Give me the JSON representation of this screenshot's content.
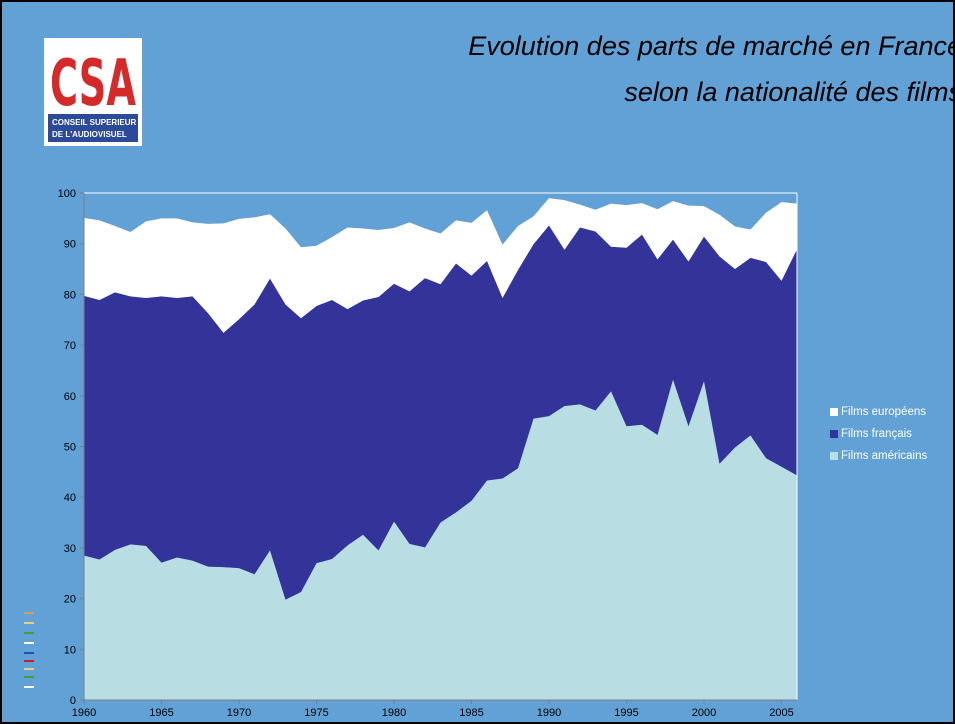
{
  "logo": {
    "mark": "CSA",
    "line1": "CONSEIL SUPERIEUR",
    "line2": "DE L'AUDIOVISUEL"
  },
  "chart_data": {
    "type": "stacked_area",
    "title": "Evolution des parts de marché en France",
    "subtitle": "selon la nationalité des films",
    "x": [
      1960,
      1961,
      1962,
      1963,
      1964,
      1965,
      1966,
      1967,
      1968,
      1969,
      1970,
      1971,
      1972,
      1973,
      1974,
      1975,
      1976,
      1977,
      1978,
      1979,
      1980,
      1981,
      1982,
      1983,
      1984,
      1985,
      1986,
      1987,
      1988,
      1989,
      1990,
      1991,
      1992,
      1993,
      1994,
      1995,
      1996,
      1997,
      1998,
      1999,
      2000,
      2001,
      2002,
      2003,
      2004,
      2005,
      2006
    ],
    "xlim": [
      1960,
      2006
    ],
    "xticks": [
      1960,
      1965,
      1970,
      1975,
      1980,
      1985,
      1990,
      1995,
      2000,
      2005
    ],
    "ylim": [
      0,
      100
    ],
    "yticks": [
      0,
      10,
      20,
      30,
      40,
      50,
      60,
      70,
      80,
      90,
      100
    ],
    "legend": "right",
    "series": [
      {
        "name": "Films américains",
        "color": "#b8dee4",
        "values": [
          28.5,
          27.7,
          29.6,
          30.7,
          30.4,
          27.1,
          28.1,
          27.5,
          26.3,
          26.2,
          26.0,
          24.8,
          29.5,
          19.8,
          21.3,
          27.0,
          27.8,
          30.5,
          32.6,
          29.5,
          35.2,
          30.8,
          30.1,
          35.0,
          37.0,
          39.3,
          43.3,
          43.7,
          45.7,
          55.5,
          56.0,
          58.0,
          58.3,
          57.1,
          60.9,
          54.0,
          54.3,
          52.3,
          63.2,
          54.0,
          62.9,
          46.6,
          49.8,
          52.2,
          47.7,
          46.0,
          44.3
        ]
      },
      {
        "name": "Films français",
        "color": "#333399",
        "values": [
          51.2,
          51.2,
          50.8,
          48.9,
          48.9,
          52.5,
          51.2,
          52.1,
          50.0,
          46.2,
          49.1,
          53.2,
          53.6,
          58.2,
          54.0,
          50.7,
          51.1,
          46.6,
          46.2,
          50.0,
          46.9,
          49.8,
          53.1,
          47.0,
          49.1,
          44.4,
          43.3,
          35.6,
          39.1,
          34.4,
          37.6,
          30.8,
          34.9,
          35.3,
          28.5,
          35.2,
          37.5,
          34.6,
          27.6,
          32.5,
          28.5,
          40.9,
          35.2,
          35.0,
          38.7,
          36.7,
          44.6
        ]
      },
      {
        "name": "Films européens",
        "color": "#ffffff",
        "values": [
          15.4,
          15.7,
          13.1,
          12.7,
          15.1,
          15.4,
          15.7,
          14.6,
          17.6,
          21.6,
          19.8,
          17.2,
          12.7,
          15.0,
          14.0,
          11.9,
          12.4,
          16.1,
          14.2,
          13.2,
          11.0,
          13.6,
          9.8,
          10.0,
          8.5,
          10.4,
          10.0,
          10.5,
          8.7,
          5.5,
          5.4,
          9.8,
          4.5,
          4.3,
          8.5,
          8.4,
          6.2,
          9.9,
          7.6,
          11.0,
          6.0,
          8.2,
          8.4,
          5.6,
          9.7,
          15.5,
          9.0
        ]
      }
    ]
  }
}
